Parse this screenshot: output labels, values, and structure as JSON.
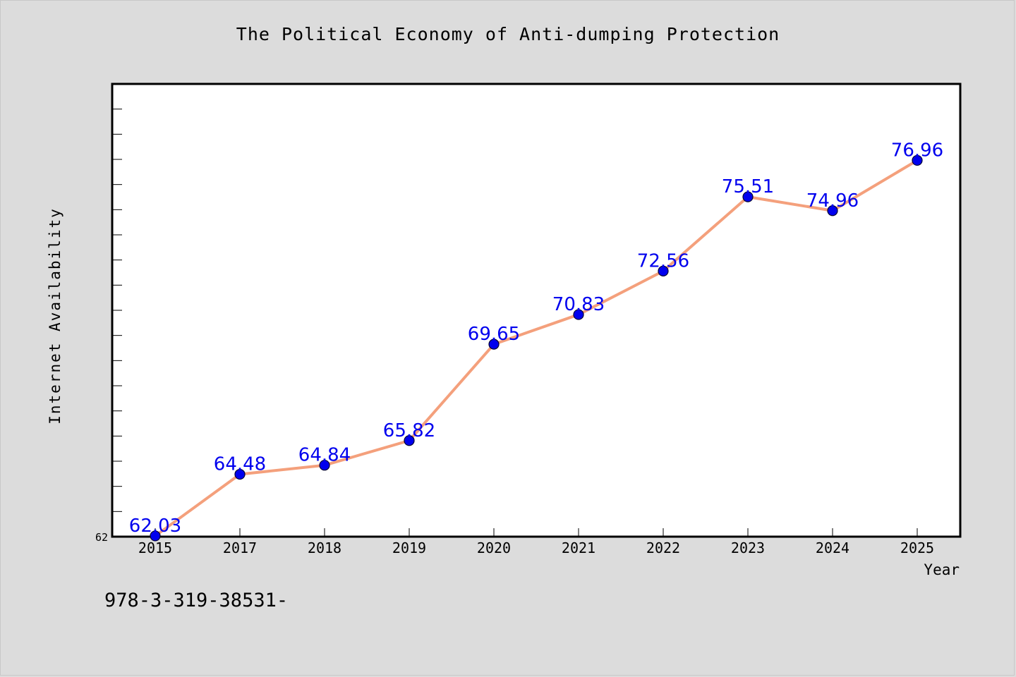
{
  "page": {
    "footnote": "978-3-319-38531-"
  },
  "chart_data": {
    "type": "line",
    "title": "The Political Economy of Anti-dumping Protection",
    "xlabel": "Year",
    "ylabel": "Internet Availability",
    "categories": [
      "2015",
      "2017",
      "2018",
      "2019",
      "2020",
      "2021",
      "2022",
      "2023",
      "2024",
      "2025"
    ],
    "series": [
      {
        "values": [
          62.03,
          64.48,
          64.84,
          65.82,
          69.65,
          70.83,
          72.56,
          75.51,
          74.96,
          76.96
        ]
      }
    ],
    "data_labels": [
      "62.03",
      "64.48",
      "64.84",
      "65.82",
      "69.65",
      "70.83",
      "72.56",
      "75.51",
      "74.96",
      "76.96"
    ],
    "ytick_labels": [
      "62"
    ],
    "ylim": [
      62,
      80
    ],
    "grid": false,
    "colors": {
      "line": "#f4a07c",
      "marker": "#0000ee",
      "data_label": "#0000ee",
      "background": "#dcdcdc",
      "plot_background": "#ffffff"
    }
  }
}
